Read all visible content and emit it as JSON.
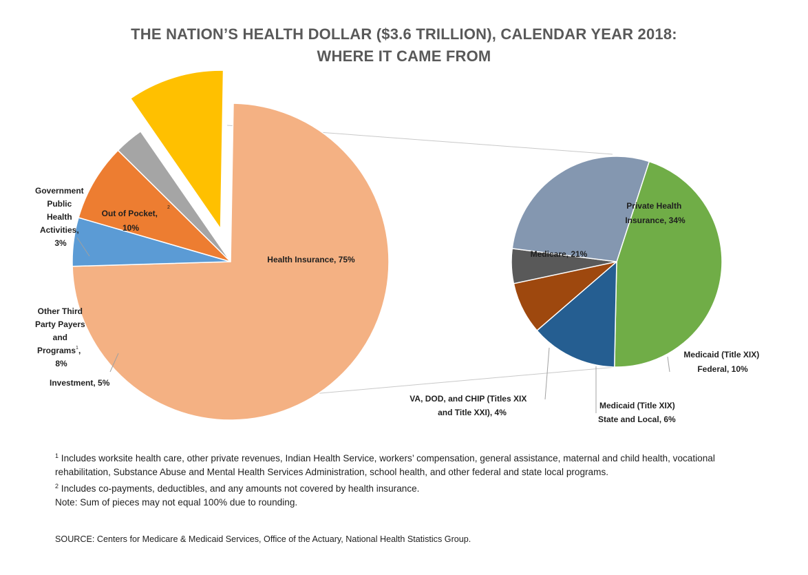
{
  "title_line1": "THE NATION’S HEALTH DOLLAR ($3.6 TRILLION), CALENDAR YEAR 2018:",
  "title_line2": "WHERE IT CAME FROM",
  "chart_data": [
    {
      "type": "pie",
      "slices": [
        {
          "name": "Health Insurance",
          "label": "Health Insurance, 75%",
          "value": 75,
          "color": "#f4b183"
        },
        {
          "name": "Investment",
          "label": "Investment, 5%",
          "value": 5,
          "color": "#5b9bd5"
        },
        {
          "name": "Other Third Party Payers and Programs",
          "label": "Other Third Party Payers and Programs, 8%",
          "footnote": "1",
          "value": 8,
          "color": "#ed7d31"
        },
        {
          "name": "Government Public Health Activities",
          "label": "Government Public Health Activities, 3%",
          "value": 3,
          "color": "#a5a5a5"
        },
        {
          "name": "Out of Pocket",
          "label": "Out of Pocket, 10%",
          "footnote": "2",
          "value": 10,
          "color": "#ffc000",
          "exploded": true
        }
      ]
    },
    {
      "type": "pie",
      "slices": [
        {
          "name": "Private Health Insurance",
          "label": "Private Health Insurance, 34%",
          "value": 34,
          "color": "#70ad47"
        },
        {
          "name": "Medicaid (Title XIX) Federal",
          "label": "Medicaid (Title XIX) Federal, 10%",
          "value": 10,
          "color": "#255e91"
        },
        {
          "name": "Medicaid (Title XIX) State and Local",
          "label": "Medicaid (Title XIX) State and Local, 6%",
          "value": 6,
          "color": "#9e480e"
        },
        {
          "name": "VA, DOD, and CHIP (Titles XIX and Title XXI)",
          "label": "VA, DOD, and CHIP (Titles XIX and Title XXI), 4%",
          "value": 4,
          "color": "#595959"
        },
        {
          "name": "Medicare",
          "label": "Medicare, 21%",
          "value": 21,
          "color": "#8497b0"
        }
      ]
    }
  ],
  "labels": {
    "health_insurance": "Health Insurance, 75%",
    "out_of_pocket_1": "Out of Pocket,",
    "out_of_pocket_sup": "2",
    "out_of_pocket_2": "10%",
    "gov_1": "Government",
    "gov_2": "Public",
    "gov_3": "Health",
    "gov_4": "Activities,",
    "gov_5": "3%",
    "other_1": "Other Third",
    "other_2": "Party Payers",
    "other_3": "and",
    "other_4": "Programs",
    "other_sup": "1",
    "other_comma": ",",
    "other_5": "8%",
    "investment": "Investment, 5%",
    "private_1": "Private Health",
    "private_2": "Insurance, 34%",
    "medicare": "Medicare, 21%",
    "mcd_fed_1": "Medicaid (Title XIX)",
    "mcd_fed_2": "Federal, 10%",
    "mcd_state_1": "Medicaid (Title XIX)",
    "mcd_state_2": "State and Local, 6%",
    "va_1": "VA, DOD, and CHIP (Titles XIX",
    "va_2": "and Title XXI), 4%"
  },
  "notes": {
    "n1_mark": "1",
    "n1_text": "Includes worksite health care, other private revenues, Indian Health Service, workers’ compensation, general assistance, maternal and child health, vocational rehabilitation, Substance Abuse and Mental Health Services Administration, school health, and other federal and state local programs.",
    "n2_mark": "2",
    "n2_text": "Includes co-payments, deductibles, and any amounts not covered by health insurance.",
    "note": "Note: Sum of pieces may not equal 100% due to rounding.",
    "source": "SOURCE: Centers for Medicare & Medicaid Services, Office of the Actuary, National Health Statistics Group."
  }
}
